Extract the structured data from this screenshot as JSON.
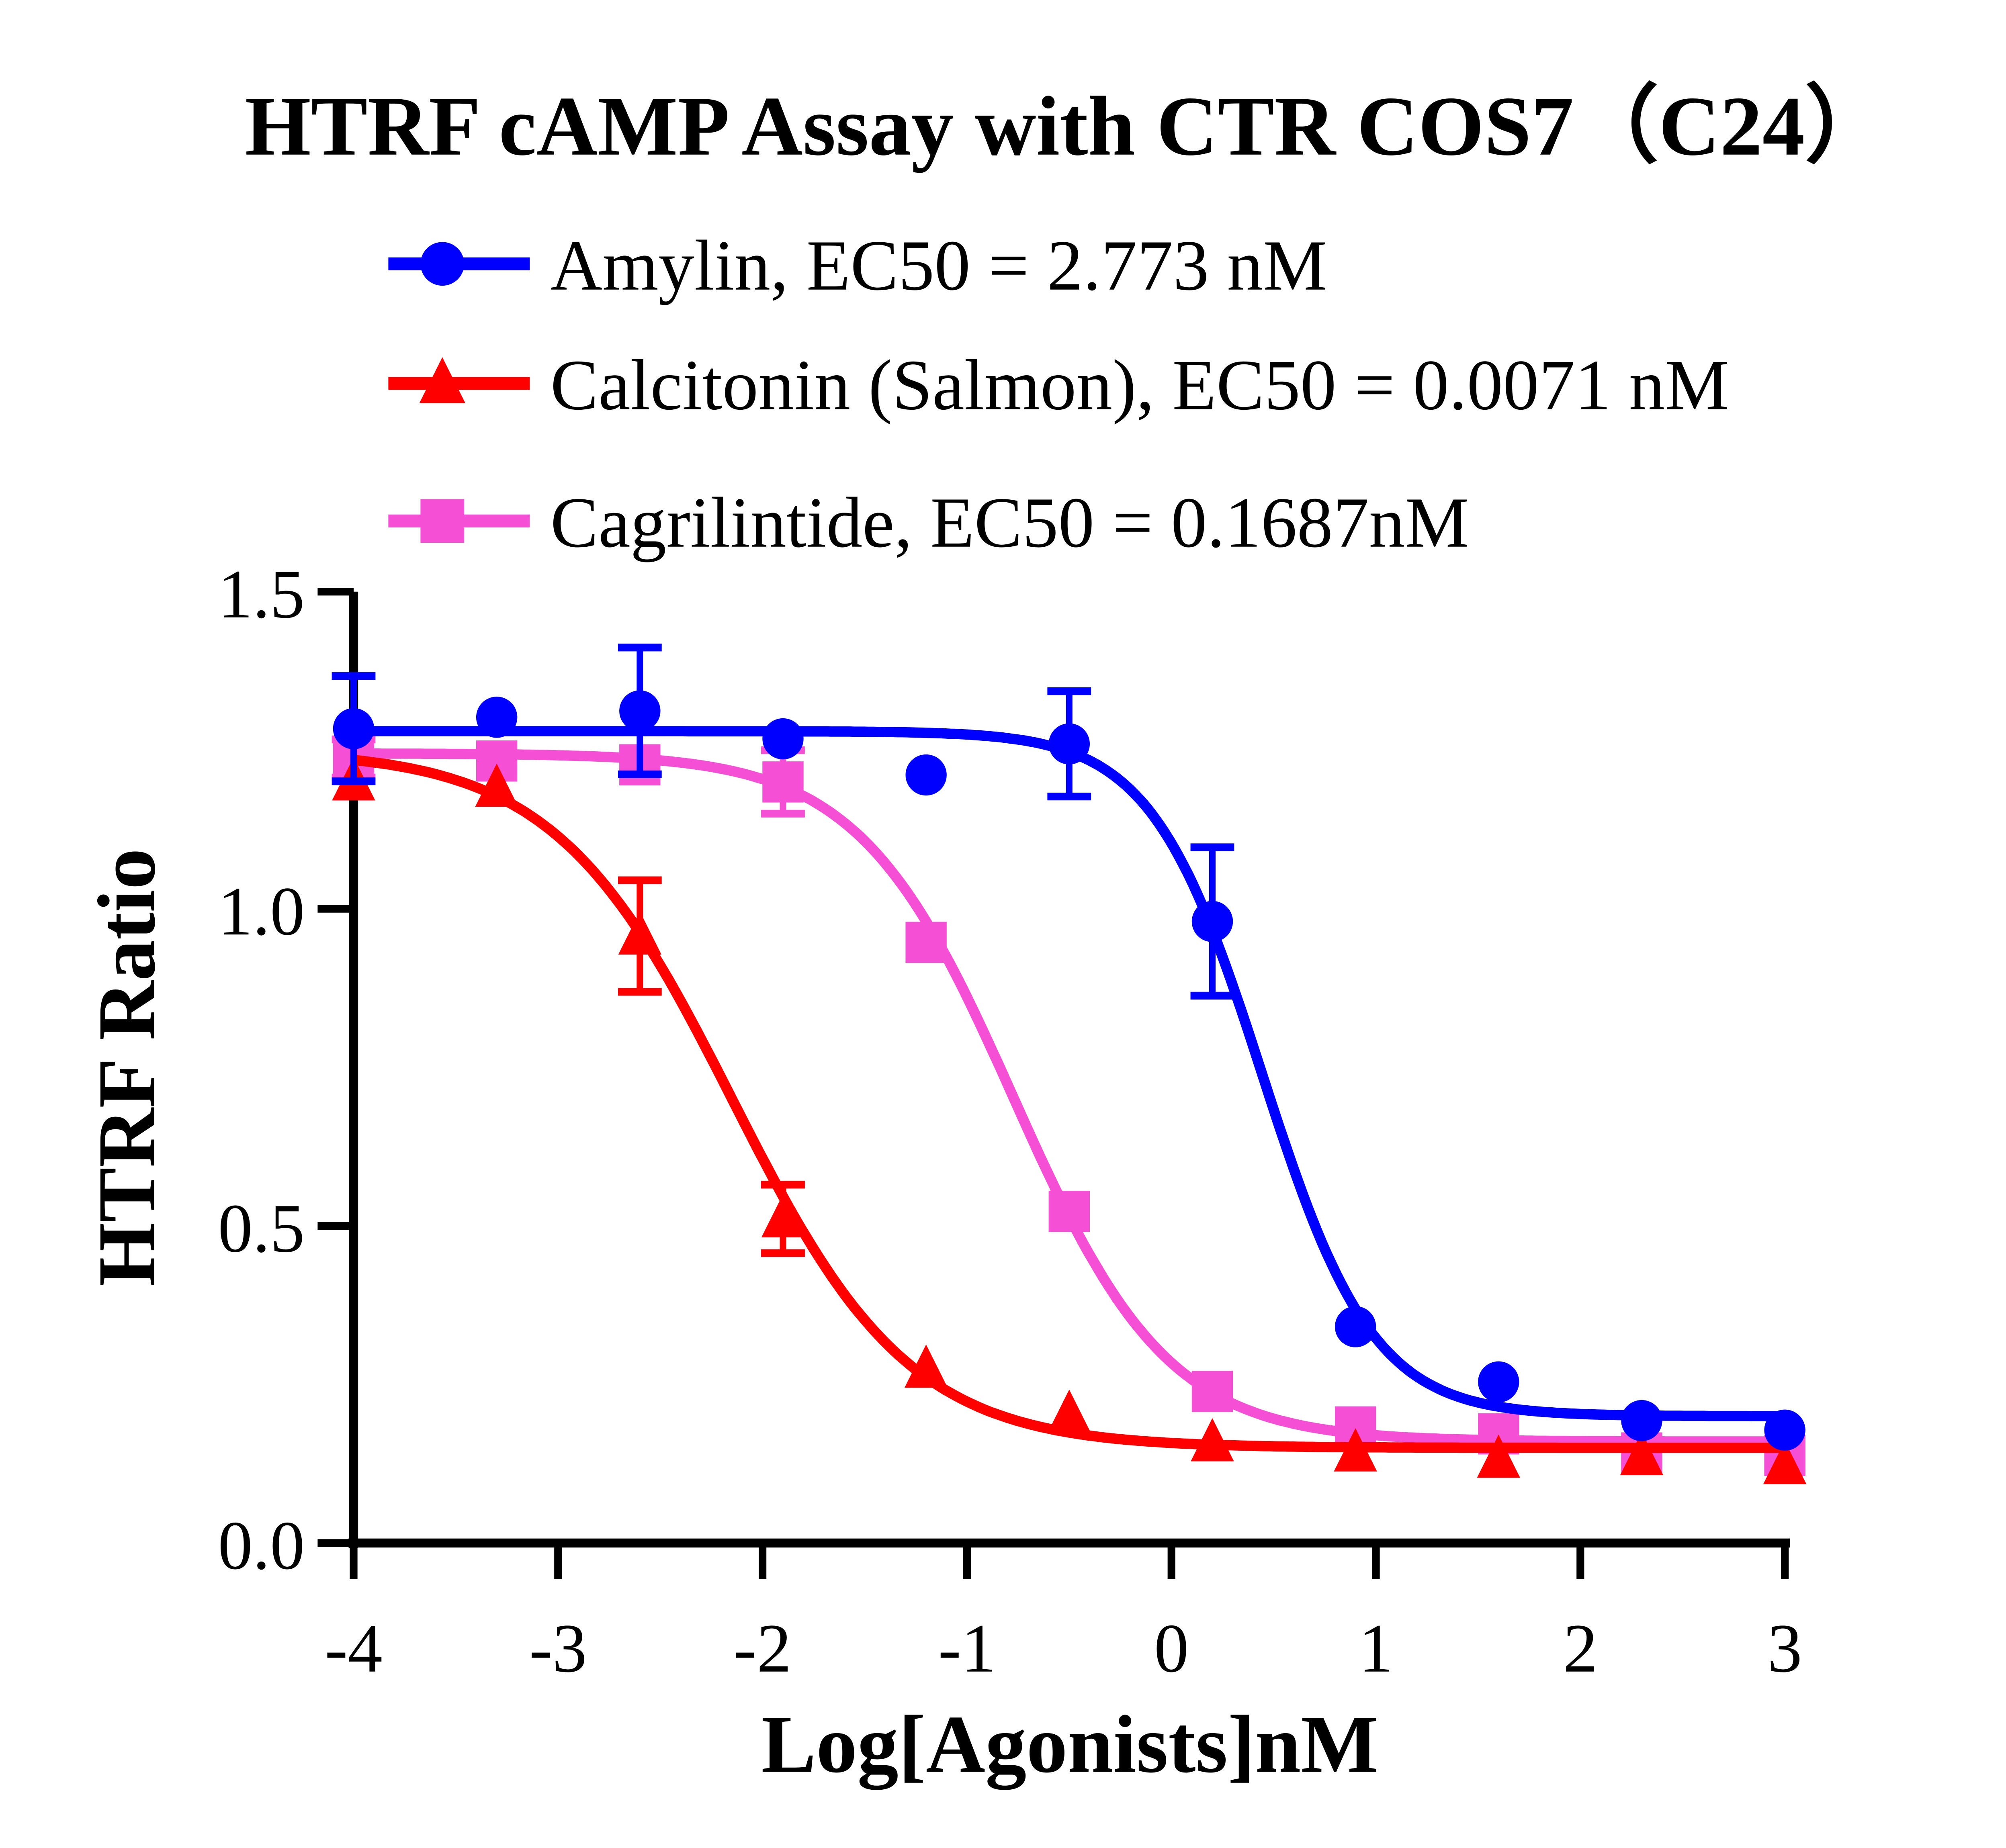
{
  "chart_data": {
    "type": "scatter",
    "title": "HTRF cAMP Assay with CTR COS7（C24）",
    "xlabel": "Log[Agonists]nM",
    "ylabel": "HTRF Ratio",
    "xlim": [
      -4,
      3
    ],
    "ylim": [
      0,
      1.5
    ],
    "xticks": [
      -4,
      -3,
      -2,
      -1,
      0,
      1,
      2,
      3
    ],
    "xtick_labels": [
      "-4",
      "-3",
      "-2",
      "-1",
      "0",
      "1",
      "2",
      "3"
    ],
    "yticks": [
      0,
      0.5,
      1.0,
      1.5
    ],
    "ytick_labels": [
      "0.0",
      "0.5",
      "1.0",
      "1.5"
    ],
    "grid": false,
    "legend_position": "top",
    "x": [
      -4,
      -3.3,
      -2.6,
      -1.9,
      -1.2,
      -0.5,
      0.2,
      0.9,
      1.6,
      2.3,
      3
    ],
    "series": [
      {
        "name": "Amylin, EC50 = 2.773 nM",
        "color": "#0000FF",
        "marker": "circle",
        "values": [
          1.284,
          1.302,
          1.312,
          1.268,
          1.211,
          1.26,
          0.98,
          0.341,
          0.254,
          0.193,
          0.178
        ],
        "errors": [
          0.083,
          0,
          0.1,
          0,
          0,
          0.083,
          0.117,
          0,
          0,
          0,
          0
        ],
        "fit": {
          "top": 1.28,
          "bottom": 0.2,
          "logEC50": 0.443,
          "hill": 1.6
        }
      },
      {
        "name": "Calcitonin (Salmon), EC50 = 0.0071 nM",
        "color": "#FF0000",
        "marker": "triangle",
        "values": [
          1.2,
          1.19,
          0.957,
          0.511,
          0.274,
          0.203,
          0.158,
          0.142,
          0.132,
          0.136,
          0.122
        ],
        "errors": [
          0,
          0,
          0.088,
          0.054,
          0,
          0,
          0,
          0,
          0,
          0,
          0
        ],
        "fit": {
          "top": 1.25,
          "bottom": 0.15,
          "logEC50": -2.149,
          "hill": 1.0
        }
      },
      {
        "name": "Cagrilintide, EC50 = 0.1687nM",
        "color": "#F550D5",
        "marker": "square",
        "values": [
          1.237,
          1.233,
          1.227,
          1.2,
          0.947,
          0.523,
          0.239,
          0.183,
          0.172,
          0.142,
          0.138
        ],
        "errors": [
          0.03,
          0,
          0,
          0.05,
          0,
          0,
          0,
          0,
          0,
          0,
          0
        ],
        "fit": {
          "top": 1.245,
          "bottom": 0.16,
          "logEC50": -0.773,
          "hill": 1.15
        }
      }
    ]
  }
}
